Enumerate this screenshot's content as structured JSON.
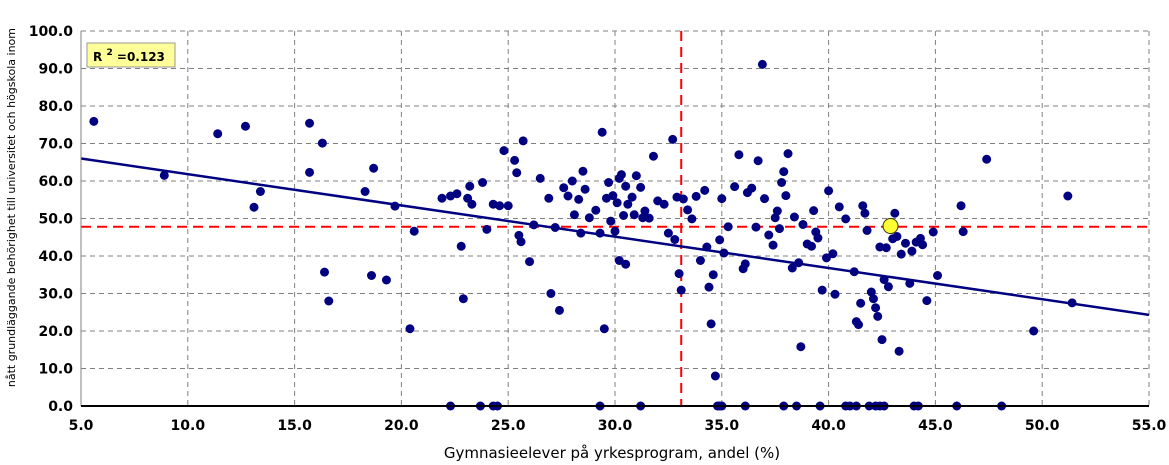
{
  "chart_data": {
    "type": "scatter",
    "xlabel": "Gymnasieelever på yrkesprogram, andel (%)",
    "ylabel": "nått grundläggande behörighet till universitet och högskola inom",
    "xlim": [
      5.0,
      55.0
    ],
    "ylim": [
      0.0,
      100.0
    ],
    "x_ticks": [
      "5.0",
      "10.0",
      "15.0",
      "20.0",
      "25.0",
      "30.0",
      "35.0",
      "40.0",
      "45.0",
      "50.0",
      "55.0"
    ],
    "y_ticks": [
      "0.0",
      "10.0",
      "20.0",
      "30.0",
      "40.0",
      "50.0",
      "60.0",
      "70.0",
      "80.0",
      "90.0",
      "100.0"
    ],
    "grid": true,
    "r2_label": "R",
    "r2_sup": "2",
    "r2_value": "=0.123",
    "colors": {
      "points": "#000080",
      "trend": "#000080",
      "mean_lines": "#ff0000",
      "highlight": "#ffff33",
      "r2_box": "#ffff99"
    },
    "mean_x": 33.1,
    "mean_y": 47.8,
    "trend": {
      "x": [
        5.0,
        55.0
      ],
      "y": [
        66.0,
        24.3
      ]
    },
    "highlight_point": {
      "x": 42.9,
      "y": 48.0
    },
    "points": [
      [
        5.6,
        75.9
      ],
      [
        8.9,
        61.5
      ],
      [
        11.4,
        72.6
      ],
      [
        12.7,
        74.6
      ],
      [
        13.1,
        53.0
      ],
      [
        13.4,
        57.2
      ],
      [
        15.7,
        75.4
      ],
      [
        15.7,
        62.3
      ],
      [
        16.3,
        70.1
      ],
      [
        16.4,
        35.7
      ],
      [
        16.6,
        28.0
      ],
      [
        18.3,
        57.2
      ],
      [
        18.6,
        34.8
      ],
      [
        18.7,
        63.4
      ],
      [
        19.3,
        33.6
      ],
      [
        19.7,
        53.3
      ],
      [
        20.4,
        20.6
      ],
      [
        20.6,
        46.6
      ],
      [
        21.9,
        55.4
      ],
      [
        22.3,
        56.0
      ],
      [
        22.6,
        56.6
      ],
      [
        22.8,
        42.6
      ],
      [
        22.9,
        28.6
      ],
      [
        23.1,
        55.4
      ],
      [
        23.2,
        58.6
      ],
      [
        23.3,
        53.8
      ],
      [
        23.8,
        59.6
      ],
      [
        24.0,
        47.1
      ],
      [
        24.3,
        53.8
      ],
      [
        24.6,
        53.4
      ],
      [
        24.8,
        68.1
      ],
      [
        25.0,
        53.4
      ],
      [
        25.3,
        65.5
      ],
      [
        25.4,
        62.2
      ],
      [
        25.5,
        45.5
      ],
      [
        25.6,
        43.8
      ],
      [
        25.7,
        70.7
      ],
      [
        26.0,
        38.5
      ],
      [
        26.2,
        48.3
      ],
      [
        26.5,
        60.7
      ],
      [
        26.9,
        55.4
      ],
      [
        27.0,
        30.0
      ],
      [
        27.2,
        47.6
      ],
      [
        27.4,
        25.5
      ],
      [
        27.6,
        58.2
      ],
      [
        27.8,
        56.0
      ],
      [
        28.0,
        60.0
      ],
      [
        28.1,
        51.0
      ],
      [
        28.3,
        55.1
      ],
      [
        28.4,
        46.1
      ],
      [
        28.5,
        62.6
      ],
      [
        28.6,
        57.8
      ],
      [
        28.8,
        50.2
      ],
      [
        29.1,
        52.2
      ],
      [
        29.3,
        46.1
      ],
      [
        29.4,
        73.0
      ],
      [
        29.5,
        20.6
      ],
      [
        29.6,
        55.4
      ],
      [
        29.7,
        59.6
      ],
      [
        29.8,
        49.3
      ],
      [
        29.9,
        56.1
      ],
      [
        30.0,
        46.6
      ],
      [
        30.1,
        54.2
      ],
      [
        30.2,
        60.7
      ],
      [
        30.3,
        61.7
      ],
      [
        30.4,
        50.8
      ],
      [
        30.5,
        58.6
      ],
      [
        30.6,
        53.8
      ],
      [
        30.8,
        55.7
      ],
      [
        30.2,
        38.8
      ],
      [
        30.5,
        37.8
      ],
      [
        30.9,
        51.0
      ],
      [
        31.0,
        61.4
      ],
      [
        31.2,
        58.3
      ],
      [
        31.3,
        50.2
      ],
      [
        31.4,
        52.0
      ],
      [
        31.6,
        50.1
      ],
      [
        31.8,
        66.6
      ],
      [
        32.0,
        54.7
      ],
      [
        32.3,
        53.8
      ],
      [
        32.5,
        46.1
      ],
      [
        32.7,
        71.1
      ],
      [
        32.8,
        44.4
      ],
      [
        32.9,
        55.7
      ],
      [
        33.0,
        35.3
      ],
      [
        33.1,
        30.9
      ],
      [
        33.2,
        55.2
      ],
      [
        33.4,
        52.3
      ],
      [
        33.6,
        49.9
      ],
      [
        33.8,
        55.9
      ],
      [
        34.0,
        38.8
      ],
      [
        34.2,
        57.5
      ],
      [
        34.3,
        42.4
      ],
      [
        34.4,
        31.7
      ],
      [
        34.5,
        21.9
      ],
      [
        34.6,
        35.0
      ],
      [
        34.7,
        8.0
      ],
      [
        34.9,
        44.3
      ],
      [
        35.0,
        55.3
      ],
      [
        35.1,
        40.8
      ],
      [
        35.3,
        47.8
      ],
      [
        35.6,
        58.5
      ],
      [
        35.8,
        67.0
      ],
      [
        36.0,
        36.6
      ],
      [
        36.1,
        37.9
      ],
      [
        36.2,
        56.9
      ],
      [
        36.4,
        58.1
      ],
      [
        36.6,
        47.7
      ],
      [
        36.7,
        65.4
      ],
      [
        36.9,
        91.1
      ],
      [
        37.0,
        55.3
      ],
      [
        37.2,
        45.6
      ],
      [
        37.4,
        42.9
      ],
      [
        37.5,
        50.2
      ],
      [
        37.6,
        52.0
      ],
      [
        37.7,
        47.3
      ],
      [
        37.8,
        59.6
      ],
      [
        37.9,
        62.5
      ],
      [
        38.0,
        56.1
      ],
      [
        38.1,
        67.3
      ],
      [
        38.3,
        36.8
      ],
      [
        38.4,
        50.4
      ],
      [
        38.6,
        38.2
      ],
      [
        38.7,
        15.8
      ],
      [
        38.8,
        48.4
      ],
      [
        39.0,
        43.2
      ],
      [
        39.2,
        42.6
      ],
      [
        39.3,
        52.1
      ],
      [
        39.4,
        46.4
      ],
      [
        39.5,
        44.8
      ],
      [
        39.7,
        30.9
      ],
      [
        39.9,
        39.5
      ],
      [
        40.0,
        57.4
      ],
      [
        40.2,
        40.6
      ],
      [
        40.3,
        29.8
      ],
      [
        40.5,
        53.1
      ],
      [
        40.8,
        49.9
      ],
      [
        41.2,
        35.8
      ],
      [
        41.3,
        22.5
      ],
      [
        41.4,
        21.7
      ],
      [
        41.5,
        27.4
      ],
      [
        41.6,
        53.4
      ],
      [
        41.7,
        51.4
      ],
      [
        41.8,
        46.8
      ],
      [
        42.0,
        30.4
      ],
      [
        42.1,
        28.6
      ],
      [
        42.2,
        26.2
      ],
      [
        42.3,
        23.9
      ],
      [
        42.4,
        42.4
      ],
      [
        42.5,
        17.7
      ],
      [
        42.6,
        33.7
      ],
      [
        42.7,
        42.2
      ],
      [
        42.8,
        31.8
      ],
      [
        43.0,
        44.6
      ],
      [
        43.1,
        51.4
      ],
      [
        43.2,
        45.2
      ],
      [
        43.3,
        14.6
      ],
      [
        43.4,
        40.5
      ],
      [
        43.6,
        43.4
      ],
      [
        43.8,
        32.7
      ],
      [
        43.9,
        41.3
      ],
      [
        44.1,
        43.7
      ],
      [
        44.3,
        44.7
      ],
      [
        44.4,
        43.0
      ],
      [
        44.6,
        28.1
      ],
      [
        44.9,
        46.4
      ],
      [
        45.1,
        34.8
      ],
      [
        46.2,
        53.4
      ],
      [
        46.3,
        46.5
      ],
      [
        47.4,
        65.8
      ],
      [
        49.6,
        20.0
      ],
      [
        51.2,
        56.0
      ],
      [
        51.4,
        27.5
      ],
      [
        22.3,
        0.0
      ],
      [
        23.7,
        0.0
      ],
      [
        24.3,
        0.0
      ],
      [
        24.5,
        0.0
      ],
      [
        29.3,
        0.0
      ],
      [
        31.2,
        0.0
      ],
      [
        34.8,
        0.0
      ],
      [
        34.9,
        0.0
      ],
      [
        35.0,
        0.0
      ],
      [
        36.1,
        0.0
      ],
      [
        37.9,
        0.0
      ],
      [
        38.5,
        0.0
      ],
      [
        39.6,
        0.0
      ],
      [
        40.8,
        0.0
      ],
      [
        41.0,
        0.0
      ],
      [
        41.3,
        0.0
      ],
      [
        41.9,
        0.0
      ],
      [
        42.2,
        0.0
      ],
      [
        42.4,
        0.0
      ],
      [
        42.6,
        0.0
      ],
      [
        44.0,
        0.0
      ],
      [
        44.2,
        0.0
      ],
      [
        46.0,
        0.0
      ],
      [
        48.1,
        0.0
      ]
    ]
  }
}
